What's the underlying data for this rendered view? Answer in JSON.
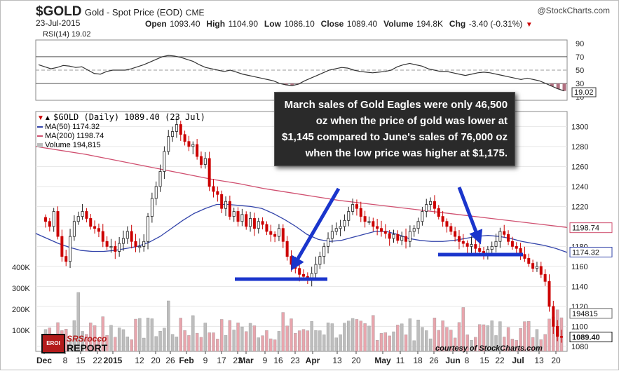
{
  "header": {
    "symbol": "$GOLD",
    "name": "Gold - Spot Price (EOD)",
    "exchange": "CME",
    "watermark": "@StockCharts.com",
    "date": "23-Jul-2015",
    "open_label": "Open",
    "open": "1093.40",
    "high_label": "High",
    "high": "1104.90",
    "low_label": "Low",
    "low": "1086.10",
    "close_label": "Close",
    "close": "1089.40",
    "volume_label": "Volume",
    "volume": "194.8K",
    "chg_label": "Chg",
    "chg": "-3.40 (-0.31%)",
    "chg_arrow": "▼"
  },
  "rsi": {
    "label": "RSI(14) 19.02",
    "current": "19.02",
    "ticks": [
      "90",
      "70",
      "50",
      "30",
      "10"
    ],
    "values": [
      58,
      55,
      52,
      54,
      57,
      56,
      54,
      55,
      50,
      45,
      44,
      48,
      50,
      50,
      50,
      52,
      55,
      58,
      62,
      66,
      70,
      72,
      71,
      69,
      66,
      63,
      58,
      54,
      52,
      50,
      48,
      50,
      47,
      44,
      42,
      40,
      38,
      36,
      34,
      30,
      28,
      27,
      29,
      34,
      38,
      42,
      46,
      50,
      52,
      54,
      53,
      50,
      48,
      47,
      46,
      47,
      48,
      50,
      55,
      58,
      60,
      58,
      56,
      52,
      50,
      48,
      48,
      46,
      44,
      42,
      44,
      46,
      47,
      46,
      44,
      42,
      40,
      38,
      36,
      38,
      36,
      34,
      30,
      26,
      22,
      19
    ]
  },
  "legend": {
    "price": "$GOLD (Daily) 1089.40 (23 Jul)",
    "ma50": "MA(50) 1174.32",
    "ma200": "MA(200) 1198.74",
    "volume": "Volume 194,815"
  },
  "colors": {
    "ma50": "#3344aa",
    "ma200": "#d05070",
    "up": "#222222",
    "down": "#cc0000",
    "arrow": "#1a35cc",
    "vol": "#bdbdbd",
    "vol_red": "#e8a5ad"
  },
  "annotation": {
    "lines": [
      "March sales of Gold Eagles were only 46,500",
      "oz when the price of gold was lower at",
      "$1,145 compared to June's sales of 76,000 oz",
      "when the low price was higher at $1,175."
    ]
  },
  "logo": {
    "line1": "SRSrocco",
    "line2": "REPORT",
    "badge": "EROI"
  },
  "credit": "courtesy of StockCharts.com",
  "price_axis": [
    "1300",
    "1280",
    "1260",
    "1240",
    "1220",
    "1200",
    "1180",
    "1160",
    "1140",
    "1120",
    "1100",
    "1080"
  ],
  "price_badges": {
    "ma200": "1198.74",
    "ma50": "1174.32",
    "volume": "194815",
    "close": "1089.40"
  },
  "volume_axis": [
    "400K",
    "300K",
    "200K",
    "100K"
  ],
  "x_labels": [
    {
      "t": "Dec",
      "b": true
    },
    {
      "t": "8"
    },
    {
      "t": "15"
    },
    {
      "t": "22"
    },
    {
      "t": "2015",
      "b": true
    },
    {
      "t": "12"
    },
    {
      "t": "20"
    },
    {
      "t": "26"
    },
    {
      "t": "Feb",
      "b": true
    },
    {
      "t": "9"
    },
    {
      "t": "17"
    },
    {
      "t": "23"
    },
    {
      "t": "Mar",
      "b": true
    },
    {
      "t": "9"
    },
    {
      "t": "16"
    },
    {
      "t": "23"
    },
    {
      "t": "Apr",
      "b": true
    },
    {
      "t": "13"
    },
    {
      "t": "20"
    },
    {
      "t": "May",
      "b": true
    },
    {
      "t": "11"
    },
    {
      "t": "18"
    },
    {
      "t": "26"
    },
    {
      "t": "Jun",
      "b": true
    },
    {
      "t": "8"
    },
    {
      "t": "15"
    },
    {
      "t": "22"
    },
    {
      "t": "Jul",
      "b": true
    },
    {
      "t": "13"
    },
    {
      "t": "20"
    }
  ],
  "chart_data": {
    "type": "line",
    "x_range": [
      "Dec 2014",
      "23 Jul 2015"
    ],
    "ylim": [
      1075,
      1315
    ],
    "series": [
      {
        "name": "$GOLD (Daily)",
        "close": [
          1205,
          1200,
          1215,
          1190,
          1170,
          1165,
          1190,
          1205,
          1210,
          1215,
          1208,
          1200,
          1198,
          1195,
          1185,
          1180,
          1180,
          1175,
          1183,
          1188,
          1195,
          1185,
          1180,
          1180,
          1185,
          1210,
          1228,
          1240,
          1255,
          1275,
          1290,
          1295,
          1302,
          1292,
          1285,
          1280,
          1282,
          1270,
          1262,
          1268,
          1240,
          1235,
          1232,
          1218,
          1225,
          1210,
          1215,
          1205,
          1212,
          1200,
          1208,
          1198,
          1205,
          1202,
          1195,
          1192,
          1190,
          1198,
          1185,
          1170,
          1162,
          1158,
          1152,
          1150,
          1146,
          1153,
          1162,
          1170,
          1180,
          1188,
          1195,
          1198,
          1200,
          1206,
          1215,
          1222,
          1218,
          1210,
          1205,
          1205,
          1200,
          1198,
          1195,
          1193,
          1188,
          1192,
          1186,
          1190,
          1185,
          1195,
          1198,
          1205,
          1215,
          1222,
          1225,
          1218,
          1210,
          1205,
          1200,
          1195,
          1190,
          1185,
          1183,
          1180,
          1182,
          1178,
          1175,
          1173,
          1177,
          1180,
          1185,
          1195,
          1192,
          1185,
          1180,
          1178,
          1172,
          1168,
          1163,
          1158,
          1160,
          1152,
          1145,
          1120,
          1100,
          1090,
          1089
        ]
      },
      {
        "name": "MA(50)",
        "values": [
          1193,
          1188,
          1183,
          1179,
          1176,
          1175,
          1175,
          1176,
          1178,
          1180,
          1184,
          1190,
          1198,
          1206,
          1213,
          1218,
          1222,
          1222,
          1221,
          1220,
          1218,
          1213,
          1207,
          1200,
          1192,
          1187,
          1185,
          1186,
          1189,
          1192,
          1195,
          1195,
          1192,
          1188,
          1186,
          1185,
          1185,
          1186,
          1188,
          1190,
          1191,
          1190,
          1188,
          1185,
          1183,
          1181,
          1178,
          1174
        ]
      },
      {
        "name": "MA(200)",
        "values": [
          1280,
          1276,
          1272,
          1267,
          1262,
          1257,
          1252,
          1247,
          1243,
          1238,
          1234,
          1230,
          1226,
          1223,
          1220,
          1217,
          1214,
          1211,
          1208,
          1205,
          1202,
          1199
        ]
      }
    ],
    "volume_axis": [
      0,
      400000
    ],
    "volume_current": 194815
  }
}
